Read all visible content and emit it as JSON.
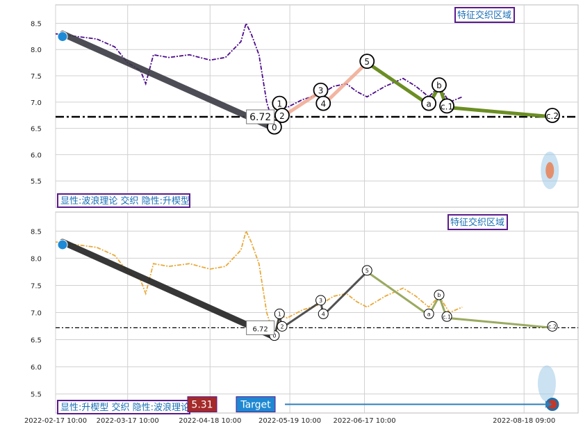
{
  "chart_data": [
    {
      "type": "line",
      "panel": "top",
      "ylim": [
        5.0,
        8.85
      ],
      "yticks": [
        "5.5",
        "6.0",
        "6.5",
        "7.0",
        "7.5",
        "8.0",
        "8.5"
      ],
      "grid": true,
      "ref_line": {
        "value": 6.72,
        "label": "6.72"
      },
      "price_color": "#4b0a8c",
      "annotation_box": "特征交织区域",
      "caption": "显性:波浪理论 交织 隐性:升楔型",
      "wave_labels": [
        "0",
        "1",
        "2",
        "3",
        "4",
        "5",
        "a",
        "b",
        "c.1",
        "c.2"
      ],
      "wave_points": [
        {
          "label": "0",
          "x": "2022-05-13",
          "y": 6.5
        },
        {
          "label": "1",
          "x": "2022-05-15",
          "y": 6.95
        },
        {
          "label": "2",
          "x": "2022-05-16",
          "y": 6.72
        },
        {
          "label": "3",
          "x": "2022-05-31",
          "y": 7.2
        },
        {
          "label": "4",
          "x": "2022-06-01",
          "y": 6.95
        },
        {
          "label": "5",
          "x": "2022-06-18",
          "y": 7.75
        },
        {
          "label": "a",
          "x": "2022-07-12",
          "y": 6.95
        },
        {
          "label": "b",
          "x": "2022-07-16",
          "y": 7.3
        },
        {
          "label": "c.1",
          "x": "2022-07-19",
          "y": 6.9
        },
        {
          "label": "c.2",
          "x": "2022-08-29",
          "y": 6.72
        }
      ],
      "price_series": [
        [
          "2022-02-17",
          8.3
        ],
        [
          "2022-02-25",
          8.25
        ],
        [
          "2022-03-05",
          8.2
        ],
        [
          "2022-03-12",
          8.05
        ],
        [
          "2022-03-17",
          7.75
        ],
        [
          "2022-03-22",
          7.6
        ],
        [
          "2022-03-24",
          7.35
        ],
        [
          "2022-03-27",
          7.9
        ],
        [
          "2022-04-02",
          7.85
        ],
        [
          "2022-04-10",
          7.9
        ],
        [
          "2022-04-18",
          7.8
        ],
        [
          "2022-04-24",
          7.85
        ],
        [
          "2022-04-30",
          8.15
        ],
        [
          "2022-05-02",
          8.5
        ],
        [
          "2022-05-04",
          8.3
        ],
        [
          "2022-05-07",
          7.9
        ],
        [
          "2022-05-10",
          7.0
        ],
        [
          "2022-05-13",
          6.5
        ],
        [
          "2022-05-15",
          6.95
        ],
        [
          "2022-05-18",
          6.9
        ],
        [
          "2022-05-24",
          7.05
        ],
        [
          "2022-05-31",
          7.15
        ],
        [
          "2022-06-05",
          7.3
        ],
        [
          "2022-06-10",
          7.35
        ],
        [
          "2022-06-14",
          7.2
        ],
        [
          "2022-06-18",
          7.1
        ],
        [
          "2022-06-25",
          7.3
        ],
        [
          "2022-07-02",
          7.45
        ],
        [
          "2022-07-07",
          7.3
        ],
        [
          "2022-07-12",
          7.1
        ],
        [
          "2022-07-16",
          7.3
        ],
        [
          "2022-07-20",
          7.0
        ],
        [
          "2022-07-25",
          7.1
        ]
      ],
      "target_zone": {
        "x": "2022-08-28",
        "y": 5.7
      }
    },
    {
      "type": "line",
      "panel": "bottom",
      "ylim": [
        5.15,
        8.85
      ],
      "yticks": [
        "5.5",
        "6.0",
        "6.5",
        "7.0",
        "7.5",
        "8.0",
        "8.5"
      ],
      "xticks": [
        "2022-02-17 10:00",
        "2022-03-17 10:00",
        "2022-04-18 10:00",
        "2022-05-19 10:00",
        "2022-06-17 10:00",
        "2022-08-18 09:00"
      ],
      "grid": true,
      "ref_line": {
        "value": 6.72,
        "label": "6.72"
      },
      "price_color": "#e8a93a",
      "annotation_box": "特征交织区域",
      "caption": "显性:升楔型 交织 隐性:波浪理论",
      "wave_labels": [
        "0",
        "1",
        "2",
        "3",
        "4",
        "5",
        "a",
        "b",
        "c.1",
        "c.2"
      ],
      "wave_points": [
        {
          "label": "0",
          "x": "2022-05-13",
          "y": 6.55
        },
        {
          "label": "1",
          "x": "2022-05-15",
          "y": 6.95
        },
        {
          "label": "2",
          "x": "2022-05-16",
          "y": 6.72
        },
        {
          "label": "3",
          "x": "2022-05-31",
          "y": 7.2
        },
        {
          "label": "4",
          "x": "2022-06-01",
          "y": 6.95
        },
        {
          "label": "5",
          "x": "2022-06-18",
          "y": 7.75
        },
        {
          "label": "a",
          "x": "2022-07-12",
          "y": 6.95
        },
        {
          "label": "b",
          "x": "2022-07-16",
          "y": 7.3
        },
        {
          "label": "c.1",
          "x": "2022-07-19",
          "y": 6.9
        },
        {
          "label": "c.2",
          "x": "2022-08-29",
          "y": 6.72
        }
      ],
      "price_series": [
        [
          "2022-02-17",
          8.3
        ],
        [
          "2022-02-25",
          8.25
        ],
        [
          "2022-03-05",
          8.2
        ],
        [
          "2022-03-12",
          8.05
        ],
        [
          "2022-03-17",
          7.75
        ],
        [
          "2022-03-22",
          7.6
        ],
        [
          "2022-03-24",
          7.35
        ],
        [
          "2022-03-27",
          7.9
        ],
        [
          "2022-04-02",
          7.85
        ],
        [
          "2022-04-10",
          7.9
        ],
        [
          "2022-04-18",
          7.8
        ],
        [
          "2022-04-24",
          7.85
        ],
        [
          "2022-04-30",
          8.15
        ],
        [
          "2022-05-02",
          8.5
        ],
        [
          "2022-05-04",
          8.3
        ],
        [
          "2022-05-07",
          7.9
        ],
        [
          "2022-05-10",
          7.0
        ],
        [
          "2022-05-13",
          6.55
        ],
        [
          "2022-05-15",
          6.95
        ],
        [
          "2022-05-18",
          6.9
        ],
        [
          "2022-05-24",
          7.05
        ],
        [
          "2022-05-31",
          7.15
        ],
        [
          "2022-06-05",
          7.3
        ],
        [
          "2022-06-10",
          7.35
        ],
        [
          "2022-06-14",
          7.2
        ],
        [
          "2022-06-18",
          7.1
        ],
        [
          "2022-06-25",
          7.3
        ],
        [
          "2022-07-02",
          7.45
        ],
        [
          "2022-07-07",
          7.3
        ],
        [
          "2022-07-12",
          7.1
        ],
        [
          "2022-07-16",
          7.3
        ],
        [
          "2022-07-20",
          7.0
        ],
        [
          "2022-07-25",
          7.1
        ]
      ],
      "price_badge": "5.31",
      "target_label": "Target",
      "target_point": {
        "x": "2022-08-29",
        "y": 5.31
      }
    }
  ]
}
